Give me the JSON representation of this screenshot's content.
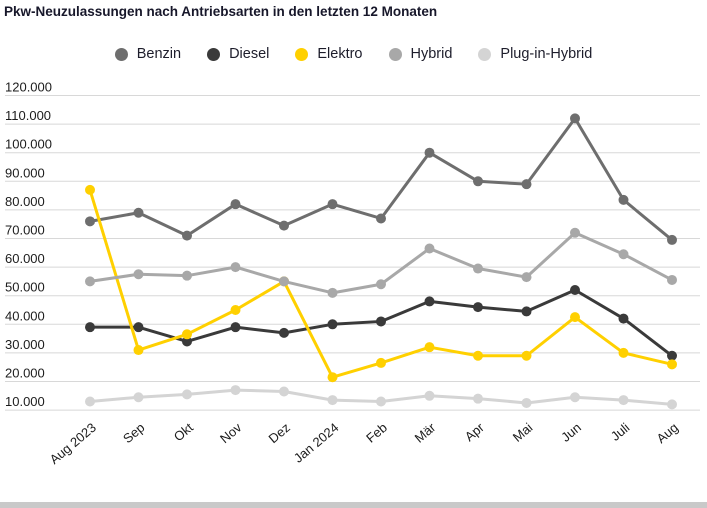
{
  "title": "Pkw-Neuzulassungen nach Antriebsarten in den letzten 12 Monaten",
  "colors": {
    "background": "#ffffff",
    "title_text": "#17172a",
    "legend_text": "#1d1d2b",
    "axis_text": "#1c1c1c",
    "gridline": "#d8d8d8",
    "bottom_bar": "#c9c9c9"
  },
  "chart_data": {
    "type": "line",
    "categories": [
      "Aug 2023",
      "Sep",
      "Okt",
      "Nov",
      "Dez",
      "Jan 2024",
      "Feb",
      "Mär",
      "Apr",
      "Mai",
      "Jun",
      "Juli",
      "Aug"
    ],
    "series": [
      {
        "name": "Benzin",
        "color": "#6e6e6e",
        "values": [
          76000,
          79000,
          71000,
          82000,
          74500,
          82000,
          77000,
          100000,
          90000,
          89000,
          112000,
          83500,
          69500
        ]
      },
      {
        "name": "Diesel",
        "color": "#3a3a3a",
        "values": [
          39000,
          39000,
          34000,
          39000,
          37000,
          40000,
          41000,
          48000,
          46000,
          44500,
          52000,
          42000,
          29000
        ]
      },
      {
        "name": "Elektro",
        "color": "#ffd000",
        "values": [
          87000,
          31000,
          36500,
          45000,
          55000,
          21500,
          26500,
          32000,
          29000,
          29000,
          42500,
          30000,
          26000
        ]
      },
      {
        "name": "Hybrid",
        "color": "#a8a8a8",
        "values": [
          55000,
          57500,
          57000,
          60000,
          55000,
          51000,
          54000,
          66500,
          59500,
          56500,
          72000,
          64500,
          55500
        ]
      },
      {
        "name": "Plug-in-Hybrid",
        "color": "#d4d4d4",
        "values": [
          13000,
          14500,
          15500,
          17000,
          16500,
          13500,
          13000,
          15000,
          14000,
          12500,
          14500,
          13500,
          12000
        ]
      }
    ],
    "ylim": [
      10000,
      120000
    ],
    "ytick_step": 10000,
    "ytick_label_format": "de-thousands",
    "xlabel": "",
    "ylabel": "",
    "grid": true,
    "legend_position": "top-center",
    "x_label_rotation_deg": -40
  }
}
